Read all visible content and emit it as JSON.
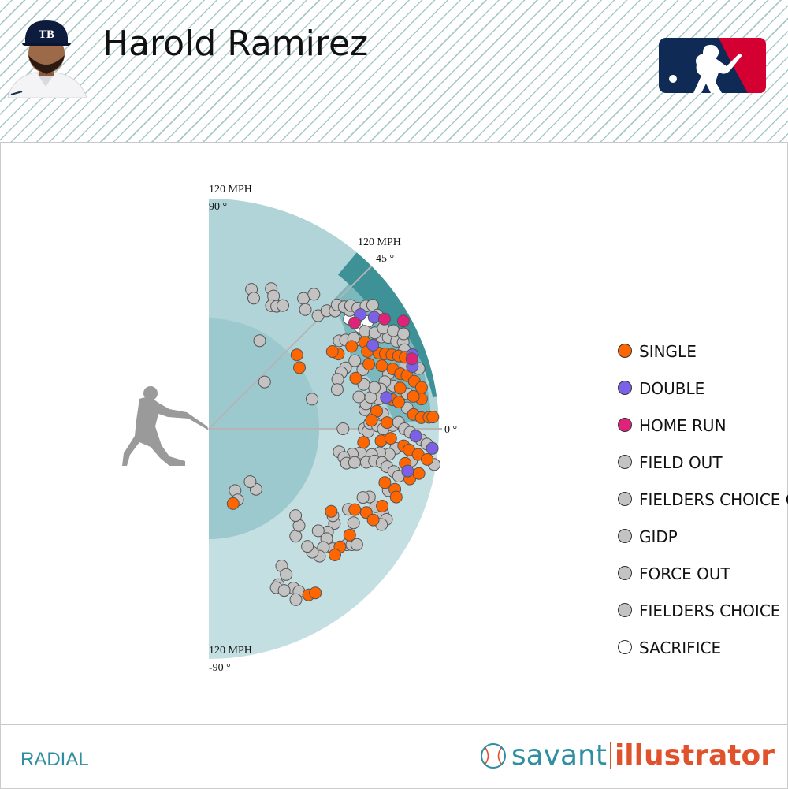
{
  "player_name": "Harold Ramirez",
  "view_label": "RADIAL",
  "brand": {
    "part1": "savant",
    "part2": "illustrator"
  },
  "icons": {
    "headshot": "player-headshot-icon",
    "league": "mlb-logo-icon",
    "batter": "batter-silhouette-icon",
    "baseball": "baseball-icon"
  },
  "colors": {
    "single": "#ff6600",
    "double": "#7b61e8",
    "home_run": "#e0237a",
    "out": "#c3c3c3",
    "sacrifice": "#ffffff",
    "accent": "#2f8fa1",
    "brand_orange": "#e0522b"
  },
  "chart_data": {
    "type": "scatter",
    "coordinate_system": "polar",
    "angle_label": "launch angle (deg)",
    "radius_label": "exit velocity (MPH)",
    "angle_range": [
      -90,
      90
    ],
    "radius_range": [
      0,
      120
    ],
    "axis_labels": [
      {
        "angle": 90,
        "text_angle": "90 °",
        "text_speed": "120 MPH"
      },
      {
        "angle": 45,
        "text_angle": "45 °",
        "text_speed": "120 MPH"
      },
      {
        "angle": 0,
        "text_angle": "0 °"
      },
      {
        "angle": -90,
        "text_angle": "-90 °",
        "text_speed": "120 MPH"
      }
    ],
    "legend": [
      {
        "key": "single",
        "label": "SINGLE",
        "color": "#ff6600"
      },
      {
        "key": "double",
        "label": "DOUBLE",
        "color": "#7b61e8"
      },
      {
        "key": "home_run",
        "label": "HOME RUN",
        "color": "#e0237a"
      },
      {
        "key": "field_out",
        "label": "FIELD OUT",
        "color": "#c3c3c3"
      },
      {
        "key": "fc_out",
        "label": "FIELDERS CHOICE OUT",
        "color": "#c3c3c3"
      },
      {
        "key": "gidp",
        "label": "GIDP",
        "color": "#c3c3c3"
      },
      {
        "key": "force_out",
        "label": "FORCE OUT",
        "color": "#c3c3c3"
      },
      {
        "key": "fielders_choice",
        "label": "FIELDERS CHOICE",
        "color": "#c3c3c3"
      },
      {
        "key": "sacrifice",
        "label": "SACRIFICE",
        "color": "#ffffff"
      }
    ],
    "points": [
      {
        "ev": 76,
        "la": 73,
        "r": "field_out"
      },
      {
        "ev": 72,
        "la": 71,
        "r": "field_out"
      },
      {
        "ev": 80,
        "la": 66,
        "r": "field_out"
      },
      {
        "ev": 77,
        "la": 64,
        "r": "field_out"
      },
      {
        "ev": 72,
        "la": 63,
        "r": "field_out"
      },
      {
        "ev": 73,
        "la": 61,
        "r": "field_out"
      },
      {
        "ev": 75,
        "la": 59,
        "r": "field_out"
      },
      {
        "ev": 84,
        "la": 54,
        "r": "field_out"
      },
      {
        "ev": 80,
        "la": 51,
        "r": "field_out"
      },
      {
        "ev": 89,
        "la": 52,
        "r": "field_out"
      },
      {
        "ev": 53,
        "la": 60,
        "r": "field_out"
      },
      {
        "ev": 38,
        "la": 40,
        "r": "field_out"
      },
      {
        "ev": 60,
        "la": 40,
        "r": "single"
      },
      {
        "ev": 57,
        "la": 34,
        "r": "single"
      },
      {
        "ev": 56,
        "la": 16,
        "r": "field_out"
      },
      {
        "ev": 82,
        "la": 46,
        "r": "field_out"
      },
      {
        "ev": 87,
        "la": 45,
        "r": "field_out"
      },
      {
        "ev": 90,
        "la": 43,
        "r": "field_out"
      },
      {
        "ev": 93,
        "la": 44,
        "r": "field_out"
      },
      {
        "ev": 95,
        "la": 42,
        "r": "field_out"
      },
      {
        "ev": 96,
        "la": 40,
        "r": "field_out"
      },
      {
        "ev": 98,
        "la": 41,
        "r": "field_out"
      },
      {
        "ev": 100,
        "la": 39,
        "r": "field_out"
      },
      {
        "ev": 104,
        "la": 38,
        "r": "field_out"
      },
      {
        "ev": 107,
        "la": 37,
        "r": "field_out"
      },
      {
        "ev": 106,
        "la": 34,
        "r": "field_out"
      },
      {
        "ev": 98,
        "la": 36,
        "r": "sacrifice"
      },
      {
        "ev": 93,
        "la": 38,
        "r": "sacrifice"
      },
      {
        "ev": 95,
        "la": 34,
        "r": "sacrifice"
      },
      {
        "ev": 100,
        "la": 34,
        "r": "sacrifice"
      },
      {
        "ev": 94,
        "la": 36,
        "r": "home_run"
      },
      {
        "ev": 99,
        "la": 37,
        "r": "double"
      },
      {
        "ev": 104,
        "la": 34,
        "r": "double"
      },
      {
        "ev": 108,
        "la": 32,
        "r": "home_run"
      },
      {
        "ev": 116,
        "la": 29,
        "r": "home_run"
      },
      {
        "ev": 90,
        "la": 31,
        "r": "field_out"
      },
      {
        "ev": 93,
        "la": 29,
        "r": "single"
      },
      {
        "ev": 92,
        "la": 26,
        "r": "single"
      },
      {
        "ev": 96,
        "la": 27,
        "r": "double"
      },
      {
        "ev": 102,
        "la": 28,
        "r": "field_out"
      },
      {
        "ev": 105,
        "la": 27,
        "r": "field_out"
      },
      {
        "ev": 108,
        "la": 25,
        "r": "field_out"
      },
      {
        "ev": 111,
        "la": 24,
        "r": "field_out"
      },
      {
        "ev": 113,
        "la": 20,
        "r": "double"
      },
      {
        "ev": 112,
        "la": 19,
        "r": "home_run"
      },
      {
        "ev": 114,
        "la": 16,
        "r": "field_out"
      },
      {
        "ev": 111,
        "la": 17,
        "r": "double"
      },
      {
        "ev": 108,
        "la": 18,
        "r": "field_out"
      },
      {
        "ev": 97,
        "la": 24,
        "r": "single"
      },
      {
        "ev": 100,
        "la": 23,
        "r": "single"
      },
      {
        "ev": 103,
        "la": 22,
        "r": "single"
      },
      {
        "ev": 106,
        "la": 21,
        "r": "single"
      },
      {
        "ev": 109,
        "la": 20,
        "r": "single"
      },
      {
        "ev": 96,
        "la": 20,
        "r": "single"
      },
      {
        "ev": 98,
        "la": 17,
        "r": "field_out"
      },
      {
        "ev": 101,
        "la": 18,
        "r": "single"
      },
      {
        "ev": 104,
        "la": 16,
        "r": "single"
      },
      {
        "ev": 107,
        "la": 15,
        "r": "single"
      },
      {
        "ev": 110,
        "la": 13,
        "r": "single"
      },
      {
        "ev": 113,
        "la": 11,
        "r": "single"
      },
      {
        "ev": 112,
        "la": 8,
        "r": "single"
      },
      {
        "ev": 108,
        "la": 9,
        "r": "single"
      },
      {
        "ev": 105,
        "la": 10,
        "r": "field_out"
      },
      {
        "ev": 102,
        "la": 12,
        "r": "single"
      },
      {
        "ev": 99,
        "la": 13,
        "r": "field_out"
      },
      {
        "ev": 95,
        "la": 15,
        "r": "field_out"
      },
      {
        "ev": 92,
        "la": 13,
        "r": "field_out"
      },
      {
        "ev": 90,
        "la": 10,
        "r": "field_out"
      },
      {
        "ev": 94,
        "la": 10,
        "r": "double"
      },
      {
        "ev": 97,
        "la": 9,
        "r": "single"
      },
      {
        "ev": 100,
        "la": 8,
        "r": "single"
      },
      {
        "ev": 104,
        "la": 6,
        "r": "field_out"
      },
      {
        "ev": 107,
        "la": 4,
        "r": "single"
      },
      {
        "ev": 111,
        "la": 3,
        "r": "single"
      },
      {
        "ev": 115,
        "la": 3,
        "r": "single"
      },
      {
        "ev": 117,
        "la": 3,
        "r": "single"
      },
      {
        "ev": 91,
        "la": 5,
        "r": "field_out"
      },
      {
        "ev": 88,
        "la": 6,
        "r": "single"
      },
      {
        "ev": 85,
        "la": 3,
        "r": "single"
      },
      {
        "ev": 82,
        "la": 7,
        "r": "field_out"
      },
      {
        "ev": 83,
        "la": 9,
        "r": "field_out"
      },
      {
        "ev": 86,
        "la": 11,
        "r": "field_out"
      },
      {
        "ev": 89,
        "la": 14,
        "r": "field_out"
      },
      {
        "ev": 84,
        "la": 16,
        "r": "field_out"
      },
      {
        "ev": 80,
        "la": 12,
        "r": "field_out"
      },
      {
        "ev": 81,
        "la": 19,
        "r": "single"
      },
      {
        "ev": 86,
        "la": 21,
        "r": "field_out"
      },
      {
        "ev": 90,
        "la": 22,
        "r": "single"
      },
      {
        "ev": 84,
        "la": 25,
        "r": "field_out"
      },
      {
        "ev": 78,
        "la": 24,
        "r": "field_out"
      },
      {
        "ev": 75,
        "la": 23,
        "r": "field_out"
      },
      {
        "ev": 78,
        "la": 30,
        "r": "single"
      },
      {
        "ev": 76,
        "la": 32,
        "r": "single"
      },
      {
        "ev": 82,
        "la": 34,
        "r": "field_out"
      },
      {
        "ev": 85,
        "la": 33,
        "r": "field_out"
      },
      {
        "ev": 86,
        "la": 30,
        "r": "single"
      },
      {
        "ev": 89,
        "la": 32,
        "r": "field_out"
      },
      {
        "ev": 96,
        "la": 32,
        "r": "field_out"
      },
      {
        "ev": 100,
        "la": 30,
        "r": "field_out"
      },
      {
        "ev": 105,
        "la": 30,
        "r": "field_out"
      },
      {
        "ev": 109,
        "la": 28,
        "r": "field_out"
      },
      {
        "ev": 113,
        "la": 26,
        "r": "field_out"
      },
      {
        "ev": 110,
        "la": 22,
        "r": "field_out"
      },
      {
        "ev": 72,
        "la": 21,
        "r": "field_out"
      },
      {
        "ev": 70,
        "la": 17,
        "r": "field_out"
      },
      {
        "ev": 70,
        "la": 0,
        "r": "field_out"
      },
      {
        "ev": 81,
        "la": 0,
        "r": "field_out"
      },
      {
        "ev": 83,
        "la": -1,
        "r": "field_out"
      },
      {
        "ev": 84,
        "la": 2,
        "r": "field_out"
      },
      {
        "ev": 88,
        "la": 1,
        "r": "field_out"
      },
      {
        "ev": 91,
        "la": 0,
        "r": "field_out"
      },
      {
        "ev": 93,
        "la": 2,
        "r": "single"
      },
      {
        "ev": 96,
        "la": 1,
        "r": "field_out"
      },
      {
        "ev": 99,
        "la": 2,
        "r": "field_out"
      },
      {
        "ev": 102,
        "la": 0,
        "r": "field_out"
      },
      {
        "ev": 105,
        "la": -1,
        "r": "field_out"
      },
      {
        "ev": 108,
        "la": -2,
        "r": "double"
      },
      {
        "ev": 111,
        "la": -3,
        "r": "field_out"
      },
      {
        "ev": 114,
        "la": -4,
        "r": "field_out"
      },
      {
        "ev": 117,
        "la": -5,
        "r": "double"
      },
      {
        "ev": 81,
        "la": -5,
        "r": "single"
      },
      {
        "ev": 90,
        "la": -4,
        "r": "single"
      },
      {
        "ev": 95,
        "la": -3,
        "r": "single"
      },
      {
        "ev": 102,
        "la": -5,
        "r": "single"
      },
      {
        "ev": 105,
        "la": -6,
        "r": "single"
      },
      {
        "ev": 110,
        "la": -7,
        "r": "single"
      },
      {
        "ev": 115,
        "la": -8,
        "r": "single"
      },
      {
        "ev": 119,
        "la": -9,
        "r": "field_out"
      },
      {
        "ev": 98,
        "la": -6,
        "r": "field_out"
      },
      {
        "ev": 95,
        "la": -8,
        "r": "field_out"
      },
      {
        "ev": 90,
        "la": -8,
        "r": "field_out"
      },
      {
        "ev": 86,
        "la": -9,
        "r": "field_out"
      },
      {
        "ev": 80,
        "la": -9,
        "r": "field_out"
      },
      {
        "ev": 76,
        "la": -10,
        "r": "field_out"
      },
      {
        "ev": 69,
        "la": -10,
        "r": "field_out"
      },
      {
        "ev": 72,
        "la": -12,
        "r": "field_out"
      },
      {
        "ev": 74,
        "la": -14,
        "r": "field_out"
      },
      {
        "ev": 78,
        "la": -13,
        "r": "field_out"
      },
      {
        "ev": 84,
        "la": -12,
        "r": "field_out"
      },
      {
        "ev": 88,
        "la": -11,
        "r": "field_out"
      },
      {
        "ev": 92,
        "la": -11,
        "r": "field_out"
      },
      {
        "ev": 95,
        "la": -12,
        "r": "field_out"
      },
      {
        "ev": 99,
        "la": -13,
        "r": "field_out"
      },
      {
        "ev": 102,
        "la": -14,
        "r": "field_out"
      },
      {
        "ev": 106,
        "la": -12,
        "r": "double"
      },
      {
        "ev": 108,
        "la": -14,
        "r": "single"
      },
      {
        "ev": 112,
        "la": -12,
        "r": "single"
      },
      {
        "ev": 104,
        "la": -10,
        "r": "single"
      },
      {
        "ev": 107,
        "la": -9,
        "r": "field_out"
      },
      {
        "ev": 96,
        "la": -17,
        "r": "single"
      },
      {
        "ev": 99,
        "la": -19,
        "r": "field_out"
      },
      {
        "ev": 102,
        "la": -18,
        "r": "single"
      },
      {
        "ev": 104,
        "la": -20,
        "r": "single"
      },
      {
        "ev": 99,
        "la": -24,
        "r": "single"
      },
      {
        "ev": 101,
        "la": -26,
        "r": "field_out"
      },
      {
        "ev": 96,
        "la": -25,
        "r": "field_out"
      },
      {
        "ev": 91,
        "la": -23,
        "r": "field_out"
      },
      {
        "ev": 88,
        "la": -24,
        "r": "field_out"
      },
      {
        "ev": 93,
        "la": -28,
        "r": "single"
      },
      {
        "ev": 98,
        "la": -29,
        "r": "single"
      },
      {
        "ev": 104,
        "la": -27,
        "r": "field_out"
      },
      {
        "ev": 103,
        "la": -29,
        "r": "field_out"
      },
      {
        "ev": 87,
        "la": -29,
        "r": "single"
      },
      {
        "ev": 84,
        "la": -30,
        "r": "field_out"
      },
      {
        "ev": 90,
        "la": -33,
        "r": "field_out"
      },
      {
        "ev": 82,
        "la": -37,
        "r": "field_out"
      },
      {
        "ev": 79,
        "la": -35,
        "r": "field_out"
      },
      {
        "ev": 77,
        "la": -34,
        "r": "single"
      },
      {
        "ev": 82,
        "la": -41,
        "r": "field_out"
      },
      {
        "ev": 78,
        "la": -43,
        "r": "field_out"
      },
      {
        "ev": 84,
        "la": -43,
        "r": "field_out"
      },
      {
        "ev": 92,
        "la": -37,
        "r": "single"
      },
      {
        "ev": 94,
        "la": -40,
        "r": "field_out"
      },
      {
        "ev": 92,
        "la": -42,
        "r": "single"
      },
      {
        "ev": 96,
        "la": -39,
        "r": "field_out"
      },
      {
        "ev": 98,
        "la": -38,
        "r": "field_out"
      },
      {
        "ev": 93,
        "la": -45,
        "r": "single"
      },
      {
        "ev": 90,
        "la": -44,
        "r": "field_out"
      },
      {
        "ev": 86,
        "la": -46,
        "r": "field_out"
      },
      {
        "ev": 88,
        "la": -49,
        "r": "field_out"
      },
      {
        "ev": 84,
        "la": -50,
        "r": "field_out"
      },
      {
        "ev": 80,
        "la": -50,
        "r": "field_out"
      },
      {
        "ev": 72,
        "la": -51,
        "r": "field_out"
      },
      {
        "ev": 69,
        "la": -47,
        "r": "field_out"
      },
      {
        "ev": 64,
        "la": -45,
        "r": "field_out"
      },
      {
        "ev": 40,
        "la": -52,
        "r": "field_out"
      },
      {
        "ev": 35,
        "la": -52,
        "r": "field_out"
      },
      {
        "ev": 35,
        "la": -67,
        "r": "field_out"
      },
      {
        "ev": 40,
        "la": -68,
        "r": "field_out"
      },
      {
        "ev": 41,
        "la": -72,
        "r": "single"
      },
      {
        "ev": 81,
        "la": -62,
        "r": "field_out"
      },
      {
        "ev": 89,
        "la": -66,
        "r": "field_out"
      },
      {
        "ev": 94,
        "la": -62,
        "r": "field_out"
      },
      {
        "ev": 90,
        "la": -67,
        "r": "field_out"
      },
      {
        "ev": 86,
        "la": -62,
        "r": "field_out"
      },
      {
        "ev": 93,
        "la": -65,
        "r": "field_out"
      },
      {
        "ev": 97,
        "la": -61,
        "r": "field_out"
      },
      {
        "ev": 100,
        "la": -63,
        "r": "field_out"
      },
      {
        "ev": 101,
        "la": -59,
        "r": "single"
      },
      {
        "ev": 102,
        "la": -57,
        "r": "single"
      }
    ]
  }
}
